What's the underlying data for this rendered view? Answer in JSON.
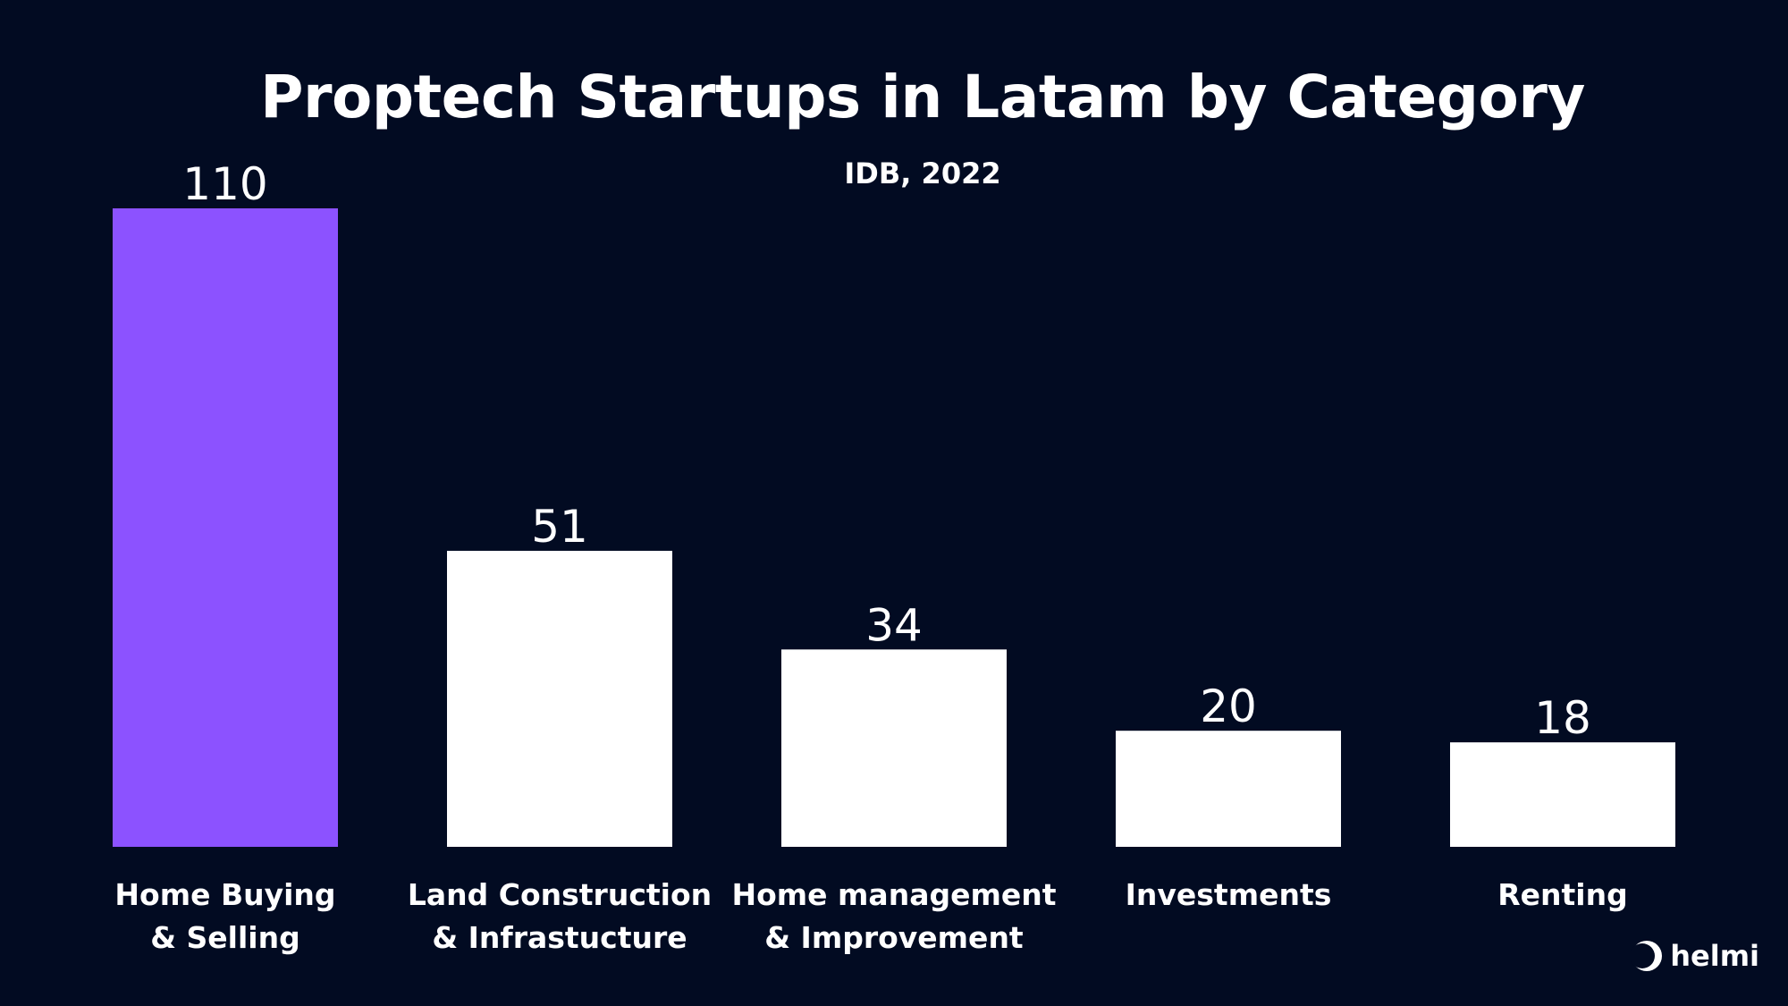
{
  "chart_data": {
    "type": "bar",
    "title": "Proptech Startups in Latam by Category",
    "subtitle": "IDB, 2022",
    "categories": [
      [
        "Home Buying",
        "& Selling"
      ],
      [
        "Land Construction",
        "& Infrastucture"
      ],
      [
        "Home management",
        "& Improvement"
      ],
      [
        "Investments"
      ],
      [
        "Renting"
      ]
    ],
    "values": [
      110,
      51,
      34,
      20,
      18
    ],
    "value_labels": [
      "110",
      "51",
      "34",
      "20",
      "18"
    ],
    "ylim": [
      0,
      110
    ],
    "grid": false,
    "colors": {
      "background": "#020b22",
      "highlight": "#8c52ff",
      "bar": "#ffffff",
      "text": "#ffffff"
    },
    "highlight_index": 0
  },
  "brand": {
    "name": "helmi",
    "icon": "moon-icon"
  }
}
